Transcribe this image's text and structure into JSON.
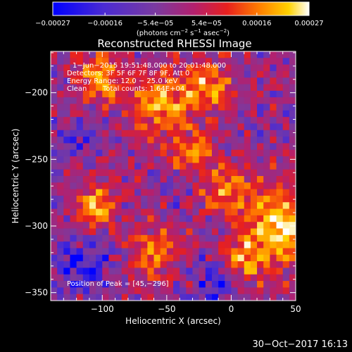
{
  "chart_data": {
    "type": "heatmap",
    "title": "Reconstructed RHESSI Image",
    "xlabel": "Heliocentric X (arcsec)",
    "ylabel": "Heliocentric Y (arcsec)",
    "xlim": [
      -140,
      50
    ],
    "ylim": [
      -356,
      -169
    ],
    "x_ticks": [
      -100,
      -50,
      0,
      50
    ],
    "x_tick_labels": [
      "−100",
      "−50",
      "0",
      "50"
    ],
    "y_ticks": [
      -200,
      -250,
      -300,
      -350
    ],
    "y_tick_labels": [
      "−200",
      "−250",
      "−300",
      "−350"
    ],
    "colorbar": {
      "range": [
        -0.00027,
        0.00027
      ],
      "ticks": [
        -0.00027,
        -0.00016,
        -5.4e-05,
        5.4e-05,
        0.00016,
        0.00027
      ],
      "tick_labels": [
        "−0.00027",
        "−0.00016",
        "−5.4e−05",
        "5.4e−05",
        "0.00016",
        "0.00027"
      ],
      "unit_prefix": "(photons cm",
      "unit_exp1": "−2",
      "unit_mid": " s",
      "unit_exp2": "−1",
      "unit_mid2": " asec",
      "unit_exp3": "−2",
      "unit_suffix": ")"
    },
    "annotations": {
      "time_range": "1−Jun−2015 19:51:48.000 to 20:01:48.000",
      "detectors": "Detectors: 3F 5F 6F 7F 8F 9F, Att 0",
      "energy_range": "Energy Range: 12.0 − 25.0 keV",
      "clean_label": "Clean",
      "total_counts": "Total counts: 1.64E+04",
      "peak_position": "Position of Peak = [45,−296]"
    },
    "peak": [
      45,
      -296
    ],
    "grid": false,
    "grid_size": [
      38,
      38
    ],
    "hot_spots": [
      {
        "x": 40,
        "y": -300,
        "amplitude": 1.0,
        "radius": 30
      },
      {
        "x": -100,
        "y": -190,
        "amplitude": 0.8,
        "radius": 18
      },
      {
        "x": -55,
        "y": -210,
        "amplitude": 0.75,
        "radius": 22
      },
      {
        "x": -20,
        "y": -195,
        "amplitude": 0.7,
        "radius": 20
      },
      {
        "x": -105,
        "y": -285,
        "amplitude": 0.8,
        "radius": 16
      },
      {
        "x": -60,
        "y": -320,
        "amplitude": 0.7,
        "radius": 18
      },
      {
        "x": -5,
        "y": -270,
        "amplitude": 0.65,
        "radius": 18
      },
      {
        "x": 10,
        "y": -325,
        "amplitude": 0.6,
        "radius": 16
      },
      {
        "x": -30,
        "y": -245,
        "amplitude": 0.6,
        "radius": 15
      }
    ],
    "cold_spots": [
      {
        "x": -115,
        "y": -330,
        "amplitude": 0.7,
        "radius": 22
      },
      {
        "x": -10,
        "y": -345,
        "amplitude": 0.6,
        "radius": 18
      },
      {
        "x": -125,
        "y": -235,
        "amplitude": 0.5,
        "radius": 16
      }
    ]
  },
  "footer": {
    "timestamp": "30−Oct−2017 16:13"
  },
  "colors": {
    "background": "#000000",
    "text": "#ffffff",
    "colormap": [
      "#0000ff",
      "#4b2bd2",
      "#7a3aa0",
      "#b3206e",
      "#e8201e",
      "#ff7a00",
      "#ffd200",
      "#ffffff"
    ]
  }
}
